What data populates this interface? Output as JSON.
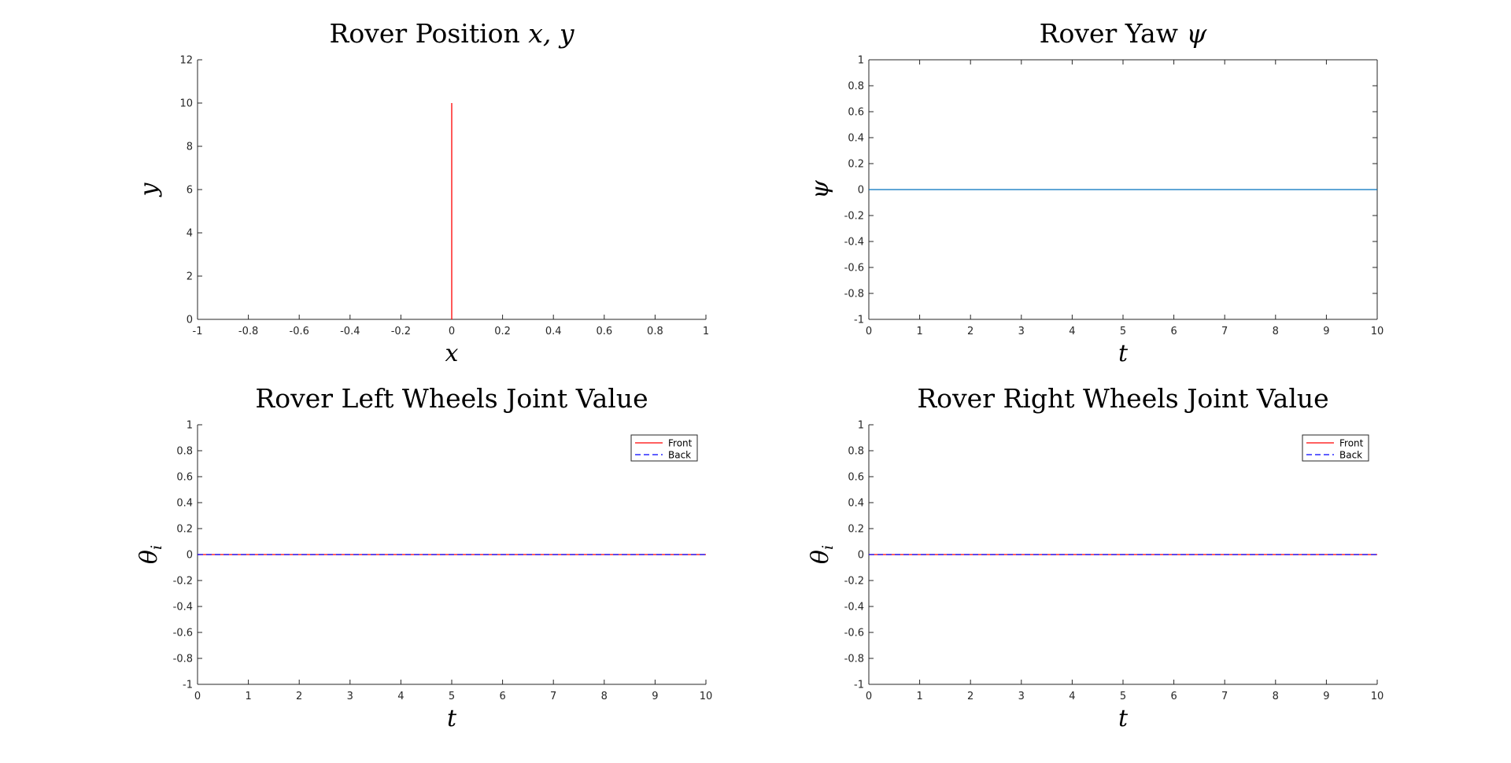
{
  "figure": {
    "background": "#ffffff",
    "axis_color": "#262626"
  },
  "chart_data": [
    {
      "id": "position",
      "type": "line",
      "title": "Rover Position x, y",
      "title_parts": [
        {
          "text": "Rover Position ",
          "math": false
        },
        {
          "text": "x, y",
          "math": true
        }
      ],
      "xlabel": "x",
      "ylabel": "y",
      "xlim": [
        -1,
        1
      ],
      "ylim": [
        0,
        12
      ],
      "xticks": [
        -1,
        -0.8,
        -0.6,
        -0.4,
        -0.2,
        0,
        0.2,
        0.4,
        0.6,
        0.8,
        1
      ],
      "yticks": [
        0,
        2,
        4,
        6,
        8,
        10,
        12
      ],
      "box": false,
      "grid": false,
      "series": [
        {
          "x": [
            0,
            0
          ],
          "y": [
            0,
            10
          ],
          "color": "#ff0000",
          "dash": "solid"
        }
      ]
    },
    {
      "id": "yaw",
      "type": "line",
      "title": "Rover Yaw ψ",
      "title_parts": [
        {
          "text": "Rover Yaw ",
          "math": false
        },
        {
          "text": "ψ",
          "math": true
        }
      ],
      "xlabel": "t",
      "ylabel": "ψ",
      "xlim": [
        0,
        10
      ],
      "ylim": [
        -1,
        1
      ],
      "xticks": [
        0,
        1,
        2,
        3,
        4,
        5,
        6,
        7,
        8,
        9,
        10
      ],
      "yticks": [
        -1,
        -0.8,
        -0.6,
        -0.4,
        -0.2,
        0,
        0.2,
        0.4,
        0.6,
        0.8,
        1
      ],
      "box": true,
      "grid": false,
      "series": [
        {
          "x": [
            0,
            10
          ],
          "y": [
            0,
            0
          ],
          "color": "#0072bd",
          "dash": "solid"
        }
      ]
    },
    {
      "id": "left-wheels",
      "type": "line",
      "title": "Rover Left Wheels Joint Value",
      "title_parts": [
        {
          "text": "Rover Left Wheels Joint Value",
          "math": false
        }
      ],
      "xlabel": "t",
      "ylabel": "θ",
      "ylabel_sub": "i",
      "xlim": [
        0,
        10
      ],
      "ylim": [
        -1,
        1
      ],
      "xticks": [
        0,
        1,
        2,
        3,
        4,
        5,
        6,
        7,
        8,
        9,
        10
      ],
      "yticks": [
        -1,
        -0.8,
        -0.6,
        -0.4,
        -0.2,
        0,
        0.2,
        0.4,
        0.6,
        0.8,
        1
      ],
      "box": false,
      "grid": false,
      "legend_position": "top-right",
      "series": [
        {
          "name": "Front",
          "x": [
            0,
            10
          ],
          "y": [
            0,
            0
          ],
          "color": "#ff0000",
          "dash": "solid"
        },
        {
          "name": "Back",
          "x": [
            0,
            10
          ],
          "y": [
            0,
            0
          ],
          "color": "#0000ff",
          "dash": "dashed"
        }
      ]
    },
    {
      "id": "right-wheels",
      "type": "line",
      "title": "Rover Right Wheels Joint Value",
      "title_parts": [
        {
          "text": "Rover Right Wheels Joint Value",
          "math": false
        }
      ],
      "xlabel": "t",
      "ylabel": "θ",
      "ylabel_sub": "i",
      "xlim": [
        0,
        10
      ],
      "ylim": [
        -1,
        1
      ],
      "xticks": [
        0,
        1,
        2,
        3,
        4,
        5,
        6,
        7,
        8,
        9,
        10
      ],
      "yticks": [
        -1,
        -0.8,
        -0.6,
        -0.4,
        -0.2,
        0,
        0.2,
        0.4,
        0.6,
        0.8,
        1
      ],
      "box": false,
      "grid": false,
      "legend_position": "top-right",
      "series": [
        {
          "name": "Front",
          "x": [
            0,
            10
          ],
          "y": [
            0,
            0
          ],
          "color": "#ff0000",
          "dash": "solid"
        },
        {
          "name": "Back",
          "x": [
            0,
            10
          ],
          "y": [
            0,
            0
          ],
          "color": "#0000ff",
          "dash": "dashed"
        }
      ]
    }
  ]
}
